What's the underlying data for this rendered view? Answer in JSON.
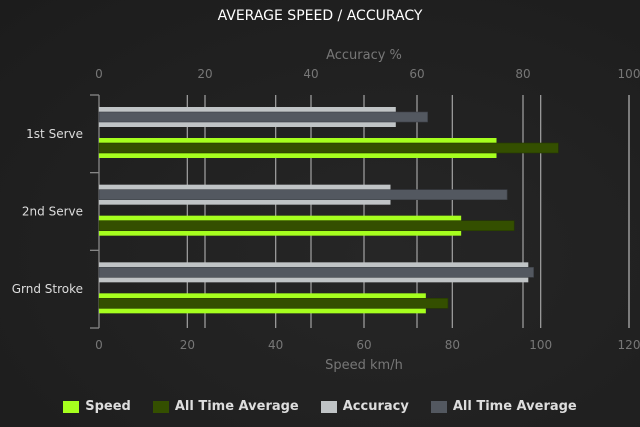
{
  "chart_data": {
    "type": "bar",
    "orientation": "horizontal",
    "title": "AVERAGE SPEED / ACCURACY",
    "categories": [
      "1st Serve",
      "2nd Serve",
      "Grnd Stroke"
    ],
    "x_bottom": {
      "label": "Speed km/h",
      "range": [
        0,
        120
      ],
      "ticks": [
        "0",
        "20",
        "40",
        "60",
        "80",
        "100",
        "120"
      ]
    },
    "x_top": {
      "label": "Accuracy %",
      "range": [
        0,
        100
      ],
      "ticks": [
        "0",
        "20",
        "40",
        "60",
        "80",
        "100"
      ]
    },
    "grid": true,
    "legend_position": "bottom",
    "series": [
      {
        "name": "Speed",
        "axis": "bottom",
        "values": [
          90,
          82,
          74
        ],
        "color": "#a6ff1e"
      },
      {
        "name": "All Time Average",
        "axis": "bottom",
        "values": [
          104,
          94,
          79
        ],
        "color": "#344f00"
      },
      {
        "name": "Accuracy",
        "axis": "top",
        "values": [
          56,
          55,
          81
        ],
        "color": "#c0c4c6"
      },
      {
        "name": "All Time Average",
        "axis": "top",
        "values": [
          62,
          77,
          82
        ],
        "color": "#535860"
      }
    ]
  }
}
